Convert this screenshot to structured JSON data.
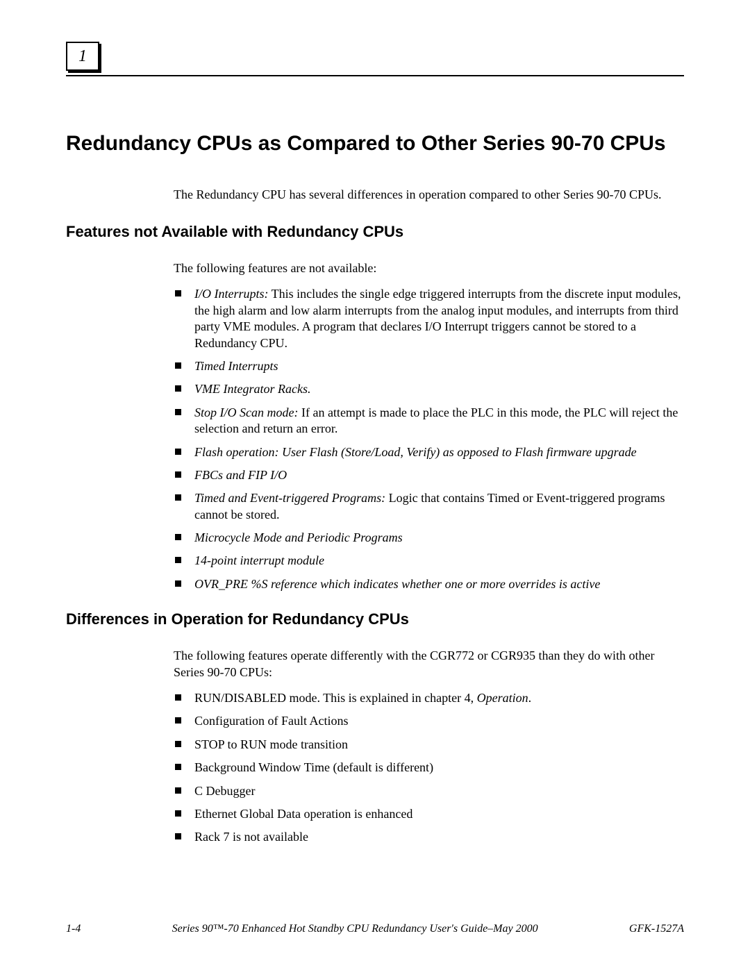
{
  "chapter_number": "1",
  "heading_main": "Redundancy CPUs as Compared to Other Series 90-70 CPUs",
  "intro_text": "The Redundancy CPU has several differences in operation compared to other Series 90-70 CPUs.",
  "section_features": {
    "heading": "Features not Available with Redundancy CPUs",
    "intro": "The following features are not available:",
    "items": {
      "io_interrupts_label": "I/O Interrupts:",
      "io_interrupts_text": "  This includes the single edge triggered interrupts from the discrete input modules, the high alarm and low alarm interrupts from the analog input modules, and interrupts from third party VME modules. A program that declares I/O Interrupt triggers cannot be stored to a Redundancy CPU.",
      "timed_interrupts": "Timed Interrupts",
      "vme_racks": "VME Integrator Racks.",
      "stop_io_label": "Stop I/O Scan mode:",
      "stop_io_text": "  If an attempt is made to place the PLC in this mode, the PLC will reject the selection and return an error.",
      "flash_op": "Flash operation:  User Flash (Store/Load, Verify) as opposed to Flash firmware upgrade",
      "fbcs": "FBCs and FIP I/O",
      "timed_event_label": "Timed and Event-triggered Programs:",
      "timed_event_text": " Logic that contains Timed or Event-triggered programs cannot be stored.",
      "microcycle": "Microcycle Mode and Periodic Programs",
      "interrupt_module": "14-point interrupt module",
      "ovr_pre": "OVR_PRE %S reference which indicates whether one or more overrides is active"
    }
  },
  "section_diffs": {
    "heading": "Differences in Operation for Redundancy CPUs",
    "intro": "The following features operate differently with the CGR772 or CGR935 than they do with other Series 90-70 CPUs:",
    "items": {
      "run_disabled_pre": "RUN/DISABLED mode. This is explained in chapter 4, ",
      "run_disabled_italic": "Operation",
      "run_disabled_post": ".",
      "config_fault": "Configuration of Fault Actions",
      "stop_run": "STOP to RUN mode transition",
      "bg_window": "Background Window Time (default is different)",
      "c_debugger": "C Debugger",
      "ethernet": "Ethernet Global Data operation is enhanced",
      "rack7": "Rack 7 is not available"
    }
  },
  "footer": {
    "left": "1-4",
    "center": "Series 90™-70 Enhanced Hot Standby CPU Redundancy User's Guide–May 2000",
    "right": "GFK-1527A"
  }
}
